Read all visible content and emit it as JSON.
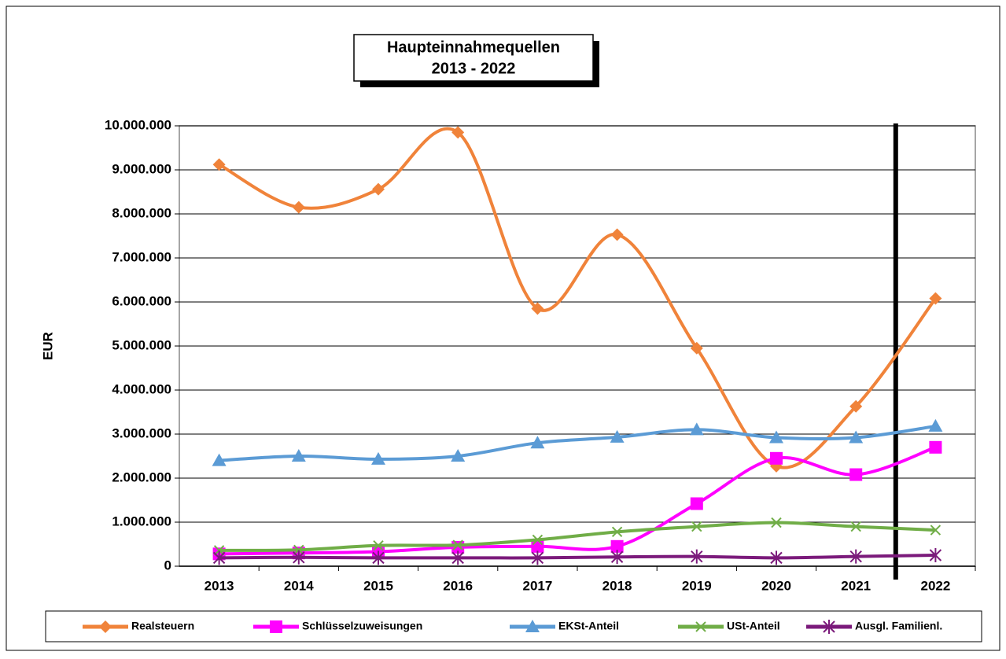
{
  "chart_data": {
    "type": "line",
    "title": "Haupteinnahmequellen",
    "subtitle": "2013 - 2022",
    "ylabel": "EUR",
    "categories": [
      "2013",
      "2014",
      "2015",
      "2016",
      "2017",
      "2018",
      "2019",
      "2020",
      "2021",
      "2022"
    ],
    "ylim": [
      0,
      10000000
    ],
    "yticks": [
      0,
      {
        "value": 1000000,
        "label": "1.000.000"
      },
      {
        "value": 2000000,
        "label": "2.000.000"
      },
      {
        "value": 3000000,
        "label": "3.000.000"
      },
      {
        "value": 4000000,
        "label": "4.000.000"
      },
      {
        "value": 5000000,
        "label": "5.000.000"
      },
      {
        "value": 6000000,
        "label": "6.000.000"
      },
      {
        "value": 7000000,
        "label": "7.000.000"
      },
      {
        "value": 8000000,
        "label": "8.000.000"
      },
      {
        "value": 9000000,
        "label": "9.000.000"
      },
      {
        "value": 10000000,
        "label": "10.000.000"
      }
    ],
    "grid": true,
    "legend": "bottom",
    "series": [
      {
        "name": "Realsteuern",
        "color": "#f0833a",
        "marker": "diamond",
        "values": [
          9120000,
          8150000,
          8560000,
          9850000,
          5850000,
          7530000,
          4950000,
          2270000,
          3630000,
          6080000
        ]
      },
      {
        "name": "Schlüsselzuweisungen",
        "color": "#ff00ff",
        "marker": "square",
        "values": [
          280000,
          300000,
          330000,
          430000,
          450000,
          450000,
          1420000,
          2450000,
          2080000,
          2700000
        ]
      },
      {
        "name": "EKSt-Anteil",
        "color": "#5b9bd5",
        "marker": "triangle",
        "values": [
          2400000,
          2500000,
          2430000,
          2500000,
          2800000,
          2930000,
          3100000,
          2920000,
          2920000,
          3180000
        ]
      },
      {
        "name": "USt-Anteil",
        "color": "#70ad47",
        "marker": "x",
        "values": [
          360000,
          370000,
          470000,
          480000,
          600000,
          780000,
          900000,
          990000,
          900000,
          820000
        ]
      },
      {
        "name": "Ausgl. Familienl.",
        "color": "#7b1a7b",
        "marker": "star",
        "values": [
          190000,
          200000,
          190000,
          190000,
          190000,
          210000,
          220000,
          190000,
          220000,
          250000
        ]
      }
    ]
  }
}
